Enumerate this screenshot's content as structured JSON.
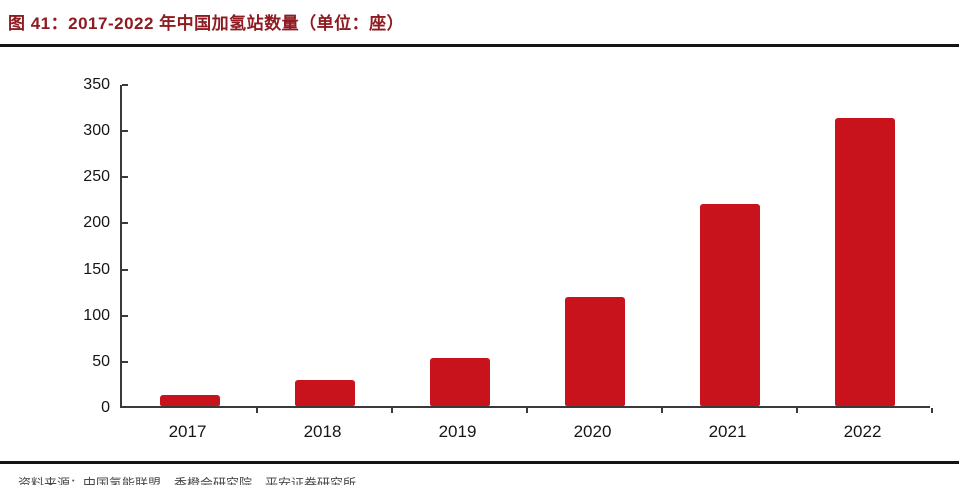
{
  "figure": {
    "title": "图 41：2017-2022 年中国加氢站数量（单位：座）",
    "source_line": "资料来源：中国氢能联盟，香橙会研究院，平安证券研究所"
  },
  "chart_data": {
    "type": "bar",
    "title": "2017-2022 年中国加氢站数量（单位：座）",
    "categories": [
      "2017",
      "2018",
      "2019",
      "2020",
      "2021",
      "2022"
    ],
    "values": [
      12,
      28,
      52,
      118,
      219,
      312
    ],
    "xlabel": "",
    "ylabel": "",
    "ylim": [
      0,
      350
    ],
    "yticks": [
      0,
      50,
      100,
      150,
      200,
      250,
      300,
      350
    ],
    "grid": false,
    "legend": null,
    "bar_color": "#c8121c"
  },
  "colors": {
    "title_red": "#8d1b21",
    "bar_red": "#c8121c",
    "axis": "#3a3a3a",
    "rule": "#141414",
    "tick_label": "#161616"
  }
}
